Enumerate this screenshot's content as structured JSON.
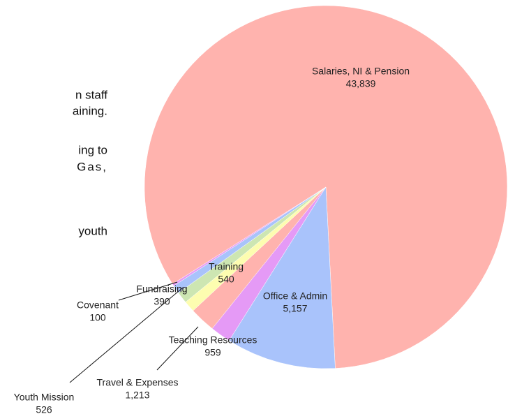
{
  "chart_data": {
    "type": "pie",
    "categories": [
      "Salaries, NI & Pension",
      "Office & Admin",
      "Teaching Resources",
      "Travel & Expenses",
      "Youth Mission",
      "Training",
      "Fundraising",
      "Covenant"
    ],
    "values": [
      43839,
      5157,
      959,
      1213,
      526,
      540,
      390,
      100
    ],
    "value_labels": [
      "43,839",
      "5,157",
      "959",
      "1,213",
      "526",
      "540",
      "390",
      "100"
    ],
    "colors": [
      "#ffb3ae",
      "#a9c3fb",
      "#e59af6",
      "#ffb3ae",
      "#fdfdb0",
      "#cde6b2",
      "#a9c3fb",
      "#e59af6"
    ]
  },
  "text_fragments": [
    "n staff",
    "aining.",
    "ing to",
    "Gas,",
    "youth"
  ]
}
